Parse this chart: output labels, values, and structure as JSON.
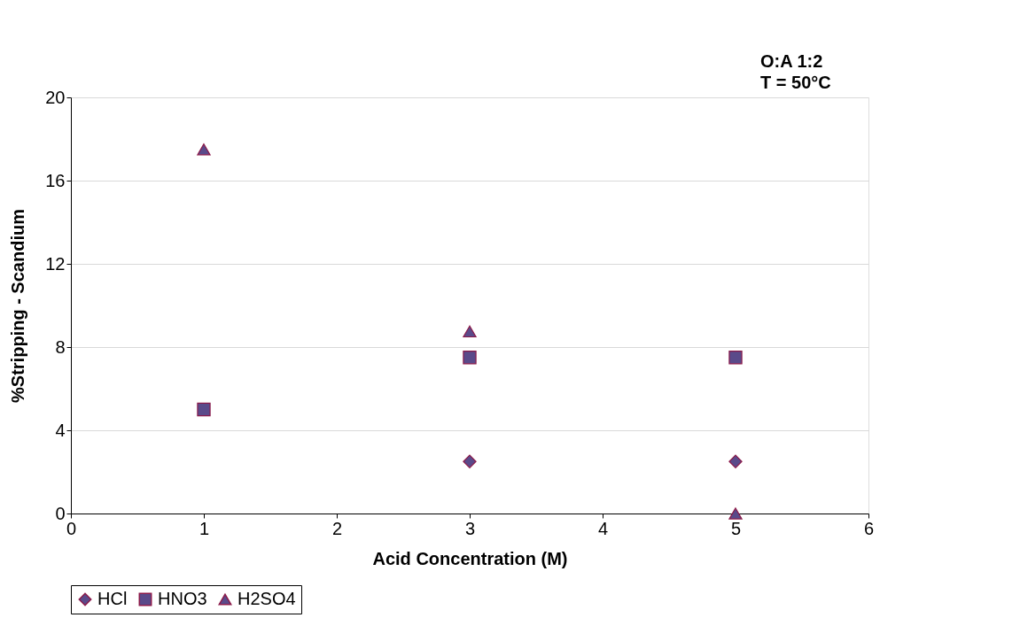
{
  "chart_data": {
    "type": "scatter",
    "xlabel": "Acid Concentration (M)",
    "ylabel": "%Stripping - Scandium",
    "annotations": [
      "O:A 1:2",
      "T = 50°C"
    ],
    "series": [
      {
        "name": "HCl",
        "color": "#5a4a8a",
        "marker": "diamond",
        "x": [
          3,
          5
        ],
        "values": [
          2.5,
          2.5
        ]
      },
      {
        "name": "HNO3",
        "color": "#5a4a8a",
        "marker": "square",
        "x": [
          1,
          3,
          5
        ],
        "values": [
          5,
          7.5,
          7.5
        ]
      },
      {
        "name": "H2SO4",
        "color": "#5a4a8a",
        "marker": "triangle",
        "x": [
          1,
          3,
          5
        ],
        "values": [
          17.5,
          8.75,
          0
        ]
      }
    ],
    "xlim": [
      0,
      6
    ],
    "xticks": [
      0,
      1,
      2,
      3,
      4,
      5,
      6
    ],
    "ylim": [
      0,
      20
    ],
    "yticks": [
      0,
      4,
      8,
      12,
      16,
      20
    ],
    "grid": "y",
    "legend": "bottom"
  }
}
